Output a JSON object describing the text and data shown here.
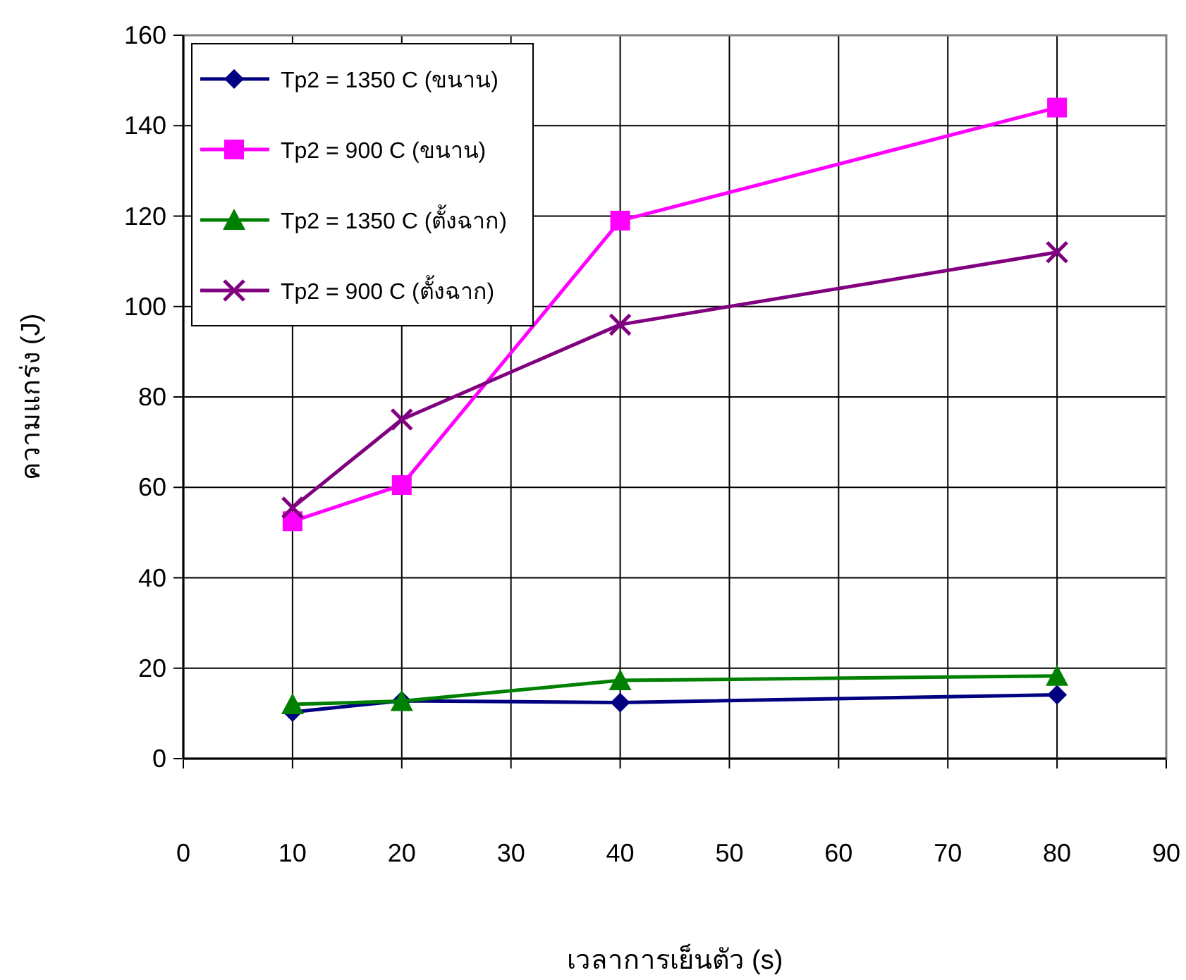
{
  "chart_data": {
    "type": "line",
    "xlabel": "เวลาการเย็นตัว (s)",
    "ylabel": "ความแกร่ง (J)",
    "xlim": [
      0,
      90
    ],
    "xticks": [
      0,
      10,
      20,
      30,
      40,
      50,
      60,
      70,
      80,
      90
    ],
    "ylim": [
      0,
      160
    ],
    "yticks": [
      0,
      20,
      40,
      60,
      80,
      100,
      120,
      140,
      160
    ],
    "grid": true,
    "legend": "top left",
    "series": [
      {
        "name": "Tp2 = 1350 C (ขนาน)",
        "color": "#000080",
        "marker": "diamond",
        "x": [
          10,
          20,
          40,
          80
        ],
        "values": [
          10.3,
          12.8,
          12.4,
          14.1
        ]
      },
      {
        "name": "Tp2 = 900 C (ขนาน)",
        "color": "#ff00ff",
        "marker": "square",
        "x": [
          10,
          20,
          40,
          80
        ],
        "values": [
          52.5,
          60.5,
          119,
          144
        ]
      },
      {
        "name": "Tp2 = 1350 C (ตั้งฉาก)",
        "color": "#008000",
        "marker": "triangle",
        "x": [
          10,
          20,
          40,
          80
        ],
        "values": [
          12,
          12.7,
          17.3,
          18.3
        ]
      },
      {
        "name": "Tp2 = 900 C (ตั้งฉาก)",
        "color": "#800080",
        "marker": "cross",
        "x": [
          10,
          20,
          40,
          80
        ],
        "values": [
          55.5,
          75,
          96,
          112
        ]
      }
    ]
  }
}
